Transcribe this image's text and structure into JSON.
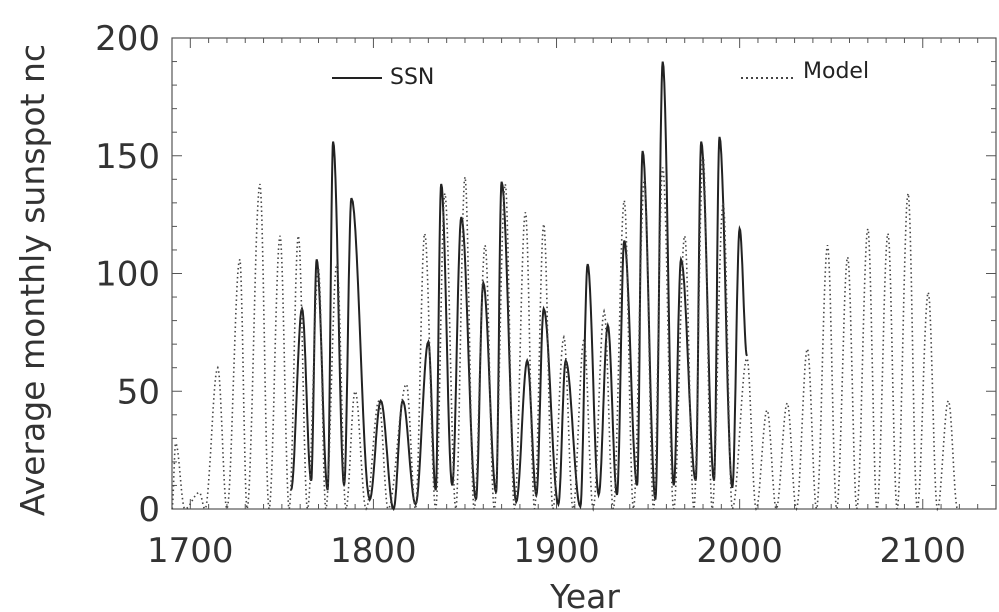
{
  "chart_data": {
    "type": "line",
    "xlabel": "Year",
    "ylabel": "Average monthly sunspot nc",
    "xlim": [
      1690,
      2140
    ],
    "ylim": [
      0,
      200
    ],
    "x_ticks": [
      1700,
      1800,
      1900,
      2000,
      2100
    ],
    "y_ticks": [
      0,
      50,
      100,
      150,
      200
    ],
    "x_tick_labels": [
      "1700",
      "1800",
      "1900",
      "2000",
      "2100"
    ],
    "y_tick_labels": [
      "0",
      "50",
      "100",
      "150",
      "200"
    ],
    "grid": false,
    "legend_placement": "top",
    "series": [
      {
        "name": "SSN",
        "style": "solid",
        "color": "#222222",
        "peaks": [
          [
            1755,
            8
          ],
          [
            1761,
            85
          ],
          [
            1766,
            12
          ],
          [
            1769,
            106
          ],
          [
            1775,
            8
          ],
          [
            1778,
            156
          ],
          [
            1784,
            10
          ],
          [
            1788,
            132
          ],
          [
            1798,
            4
          ],
          [
            1804,
            46
          ],
          [
            1811,
            0
          ],
          [
            1816,
            46
          ],
          [
            1823,
            2
          ],
          [
            1830,
            71
          ],
          [
            1834,
            8
          ],
          [
            1837,
            138
          ],
          [
            1843,
            10
          ],
          [
            1848,
            124
          ],
          [
            1856,
            4
          ],
          [
            1860,
            96
          ],
          [
            1867,
            7
          ],
          [
            1870,
            139
          ],
          [
            1878,
            3
          ],
          [
            1884,
            63
          ],
          [
            1889,
            6
          ],
          [
            1893,
            85
          ],
          [
            1901,
            2
          ],
          [
            1905,
            63
          ],
          [
            1913,
            1
          ],
          [
            1917,
            104
          ],
          [
            1923,
            6
          ],
          [
            1928,
            78
          ],
          [
            1933,
            6
          ],
          [
            1937,
            114
          ],
          [
            1944,
            10
          ],
          [
            1947,
            152
          ],
          [
            1954,
            4
          ],
          [
            1958,
            190
          ],
          [
            1964,
            10
          ],
          [
            1968,
            106
          ],
          [
            1976,
            12
          ],
          [
            1979,
            156
          ],
          [
            1986,
            12
          ],
          [
            1989,
            158
          ],
          [
            1996,
            9
          ],
          [
            2000,
            119
          ],
          [
            2004,
            65
          ]
        ]
      },
      {
        "name": "Model",
        "style": "dotted",
        "color": "#444444",
        "peaks": [
          [
            1690,
            0
          ],
          [
            1692,
            28
          ],
          [
            1697,
            0
          ],
          [
            1705,
            7
          ],
          [
            1708,
            0
          ],
          [
            1715,
            60
          ],
          [
            1720,
            0
          ],
          [
            1727,
            106
          ],
          [
            1731,
            0
          ],
          [
            1738,
            138
          ],
          [
            1743,
            0
          ],
          [
            1749,
            116
          ],
          [
            1754,
            0
          ],
          [
            1759,
            116
          ],
          [
            1764,
            0
          ],
          [
            1770,
            102
          ],
          [
            1774,
            0
          ],
          [
            1780,
            104
          ],
          [
            1785,
            0
          ],
          [
            1790,
            50
          ],
          [
            1796,
            0
          ],
          [
            1803,
            46
          ],
          [
            1808,
            0
          ],
          [
            1818,
            53
          ],
          [
            1823,
            0
          ],
          [
            1828,
            117
          ],
          [
            1834,
            0
          ],
          [
            1839,
            134
          ],
          [
            1845,
            0
          ],
          [
            1850,
            141
          ],
          [
            1855,
            0
          ],
          [
            1861,
            112
          ],
          [
            1866,
            0
          ],
          [
            1872,
            138
          ],
          [
            1877,
            0
          ],
          [
            1883,
            126
          ],
          [
            1888,
            0
          ],
          [
            1893,
            121
          ],
          [
            1898,
            0
          ],
          [
            1904,
            73
          ],
          [
            1909,
            0
          ],
          [
            1915,
            72
          ],
          [
            1920,
            0
          ],
          [
            1926,
            84
          ],
          [
            1931,
            0
          ],
          [
            1937,
            131
          ],
          [
            1942,
            0
          ],
          [
            1948,
            140
          ],
          [
            1953,
            0
          ],
          [
            1958,
            145
          ],
          [
            1964,
            0
          ],
          [
            1970,
            116
          ],
          [
            1975,
            0
          ],
          [
            1980,
            150
          ],
          [
            1985,
            0
          ],
          [
            1991,
            130
          ],
          [
            1996,
            0
          ],
          [
            2004,
            64
          ],
          [
            2009,
            0
          ],
          [
            2015,
            42
          ],
          [
            2020,
            0
          ],
          [
            2026,
            45
          ],
          [
            2031,
            0
          ],
          [
            2037,
            68
          ],
          [
            2042,
            0
          ],
          [
            2048,
            112
          ],
          [
            2053,
            0
          ],
          [
            2059,
            107
          ],
          [
            2064,
            0
          ],
          [
            2070,
            119
          ],
          [
            2075,
            0
          ],
          [
            2081,
            117
          ],
          [
            2086,
            0
          ],
          [
            2092,
            134
          ],
          [
            2097,
            0
          ],
          [
            2103,
            92
          ],
          [
            2108,
            0
          ],
          [
            2114,
            46
          ],
          [
            2119,
            0
          ]
        ]
      }
    ]
  }
}
